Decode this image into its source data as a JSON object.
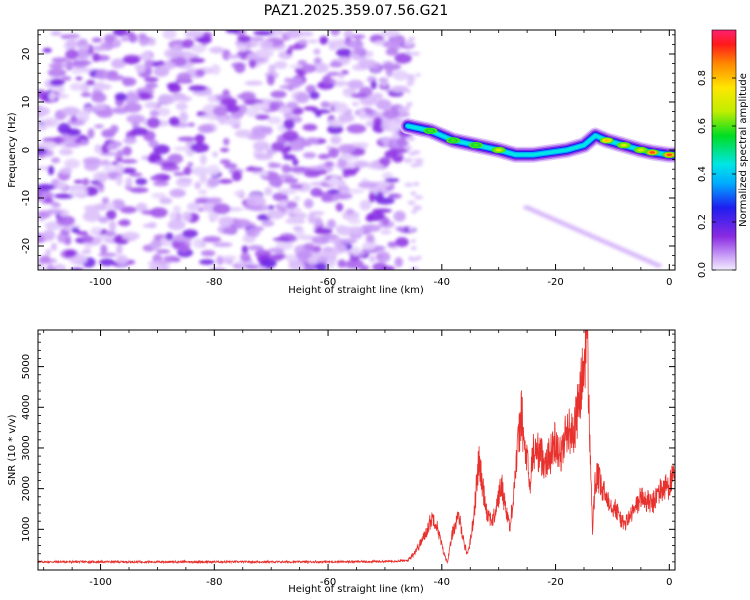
{
  "chart_data": [
    {
      "type": "heatmap",
      "title": "PAZ1.2025.359.07.56.G21",
      "xlabel": "Height of straight line (km)",
      "ylabel": "Frequency (Hz)",
      "xlim": [
        -111,
        1
      ],
      "ylim": [
        -25,
        25
      ],
      "x_ticks": [
        -100,
        -80,
        -60,
        -40,
        -20,
        0
      ],
      "y_ticks": [
        -20,
        -10,
        0,
        10,
        20
      ],
      "colorbar": {
        "label": "Normalized spectral amplitude",
        "range": [
          0,
          1
        ],
        "ticks": [
          "0.0",
          "0.2",
          "0.4",
          "0.6",
          "0.8"
        ]
      },
      "noise_region_x": [
        -111,
        -46
      ],
      "signal_ridge": {
        "x": [
          -46,
          -42,
          -38,
          -34,
          -30,
          -27,
          -24,
          -21,
          -18,
          -15,
          -13,
          -11,
          -8,
          -5,
          -3,
          0
        ],
        "freq_hz": [
          5,
          4,
          2,
          1,
          0,
          -1,
          -1,
          -0.5,
          0,
          1,
          3,
          2,
          1,
          0,
          -0.5,
          -1
        ],
        "peak_amplitude": [
          0.3,
          0.6,
          0.6,
          0.6,
          0.7,
          0.3,
          0.4,
          0.4,
          0.3,
          0.3,
          0.4,
          0.8,
          0.7,
          0.7,
          0.9,
          0.9
        ]
      },
      "secondary_trace": {
        "x": [
          -25,
          -2
        ],
        "freq_hz": [
          -12,
          -24
        ]
      }
    },
    {
      "type": "line",
      "xlabel": "Height of straight line (km)",
      "ylabel": "SNR (10 * v/v)",
      "xlim": [
        -111,
        1
      ],
      "ylim": [
        0,
        5900
      ],
      "x_ticks": [
        -100,
        -80,
        -60,
        -40,
        -20,
        0
      ],
      "y_ticks": [
        1000,
        2000,
        3000,
        4000,
        5000
      ],
      "series": [
        {
          "name": "SNR",
          "color": "#e8312d",
          "x": [
            -111,
            -60,
            -50,
            -46,
            -45,
            -44,
            -43,
            -42,
            -41.5,
            -41,
            -40.5,
            -40,
            -39.5,
            -39,
            -38.5,
            -38,
            -37,
            -36.5,
            -36,
            -35.5,
            -35,
            -34.5,
            -34,
            -33.5,
            -33,
            -32,
            -31,
            -30,
            -29.5,
            -29,
            -28.5,
            -28,
            -27,
            -26.5,
            -26,
            -25.5,
            -25,
            -24.5,
            -24,
            -23,
            -22,
            -21,
            -20,
            -19,
            -18,
            -17,
            -16,
            -15,
            -14.5,
            -14,
            -13.5,
            -13,
            -12.5,
            -12,
            -11,
            -10,
            -9,
            -8,
            -7,
            -6,
            -5,
            -4,
            -3,
            -2,
            -1,
            0,
            1
          ],
          "y": [
            200,
            200,
            210,
            230,
            400,
            600,
            850,
            1200,
            1300,
            1150,
            900,
            600,
            350,
            200,
            600,
            1000,
            1300,
            1000,
            600,
            400,
            700,
            1200,
            1900,
            2700,
            2200,
            1400,
            1200,
            1800,
            2100,
            1700,
            1400,
            1000,
            2500,
            3200,
            3900,
            3000,
            2700,
            2000,
            2900,
            2900,
            2700,
            2800,
            3200,
            2800,
            3500,
            3300,
            4000,
            5000,
            5950,
            3300,
            1000,
            2200,
            2300,
            2000,
            1800,
            1600,
            1400,
            1100,
            1300,
            1500,
            1800,
            1700,
            1600,
            1900,
            2000,
            2100,
            2300
          ]
        }
      ]
    }
  ]
}
